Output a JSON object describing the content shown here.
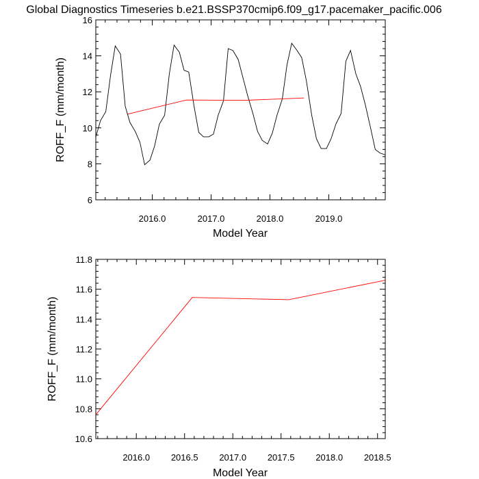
{
  "title": "Global Diagnostics Timeseries b.e21.BSSP370cmip6.f09_g17.pacemaker_pacific.006",
  "chart_data": [
    {
      "type": "line",
      "xlabel": "Model Year",
      "ylabel": "ROFF_F (mm/month)",
      "xlim": [
        2015.04,
        2019.96
      ],
      "ylim": [
        6,
        16
      ],
      "xticks": [
        2016.0,
        2017.0,
        2018.0,
        2019.0
      ],
      "xtick_labels": [
        "2016.0",
        "2017.0",
        "2018.0",
        "2019.0"
      ],
      "yticks": [
        6,
        8,
        10,
        12,
        14,
        16
      ],
      "ytick_labels": [
        "6",
        "8",
        "10",
        "12",
        "14",
        "16"
      ],
      "series": [
        {
          "color": "#000000",
          "x": [
            2015.04,
            2015.12,
            2015.21,
            2015.29,
            2015.37,
            2015.46,
            2015.54,
            2015.62,
            2015.71,
            2015.79,
            2015.87,
            2015.96,
            2016.04,
            2016.12,
            2016.21,
            2016.29,
            2016.37,
            2016.46,
            2016.54,
            2016.62,
            2016.71,
            2016.79,
            2016.87,
            2016.96,
            2017.04,
            2017.12,
            2017.21,
            2017.29,
            2017.37,
            2017.46,
            2017.54,
            2017.62,
            2017.71,
            2017.79,
            2017.87,
            2017.96,
            2018.04,
            2018.12,
            2018.21,
            2018.29,
            2018.37,
            2018.46,
            2018.54,
            2018.62,
            2018.71,
            2018.79,
            2018.87,
            2018.96,
            2019.04,
            2019.12,
            2019.21,
            2019.29,
            2019.37,
            2019.46,
            2019.54,
            2019.62,
            2019.71,
            2019.79,
            2019.87,
            2019.96
          ],
          "y": [
            9.5,
            10.4,
            10.9,
            12.9,
            14.55,
            14.1,
            11.2,
            10.3,
            9.8,
            9.2,
            7.95,
            8.2,
            9.0,
            10.2,
            10.7,
            13.0,
            14.6,
            14.2,
            13.2,
            13.1,
            11.2,
            9.75,
            9.5,
            9.5,
            9.65,
            10.7,
            11.5,
            14.4,
            14.3,
            13.8,
            12.8,
            11.8,
            10.8,
            9.8,
            9.3,
            9.1,
            9.7,
            10.7,
            11.6,
            13.5,
            14.7,
            14.3,
            13.9,
            12.6,
            10.7,
            9.4,
            8.85,
            8.85,
            9.4,
            10.2,
            10.8,
            13.7,
            14.3,
            13.0,
            12.3,
            11.3,
            10.0,
            8.8,
            8.6,
            8.5
          ]
        },
        {
          "color": "#ff0000",
          "x": [
            2015.58,
            2016.58,
            2017.58,
            2018.58
          ],
          "y": [
            10.76,
            11.545,
            11.53,
            11.66
          ]
        }
      ]
    },
    {
      "type": "line",
      "xlabel": "Model Year",
      "ylabel": "ROFF_F (mm/month)",
      "xlim": [
        2015.58,
        2018.58
      ],
      "ylim": [
        10.6,
        11.8
      ],
      "xticks": [
        2016.0,
        2016.5,
        2017.0,
        2017.5,
        2018.0,
        2018.5
      ],
      "xtick_labels": [
        "2016.0",
        "2016.5",
        "2017.0",
        "2017.5",
        "2018.0",
        "2018.5"
      ],
      "yticks": [
        10.6,
        10.8,
        11.0,
        11.2,
        11.4,
        11.6,
        11.8
      ],
      "ytick_labels": [
        "10.6",
        "10.8",
        "11.0",
        "11.2",
        "11.4",
        "11.6",
        "11.8"
      ],
      "series": [
        {
          "color": "#ff0000",
          "x": [
            2015.58,
            2016.58,
            2017.58,
            2018.58
          ],
          "y": [
            10.76,
            11.545,
            11.53,
            11.66
          ]
        }
      ]
    }
  ]
}
